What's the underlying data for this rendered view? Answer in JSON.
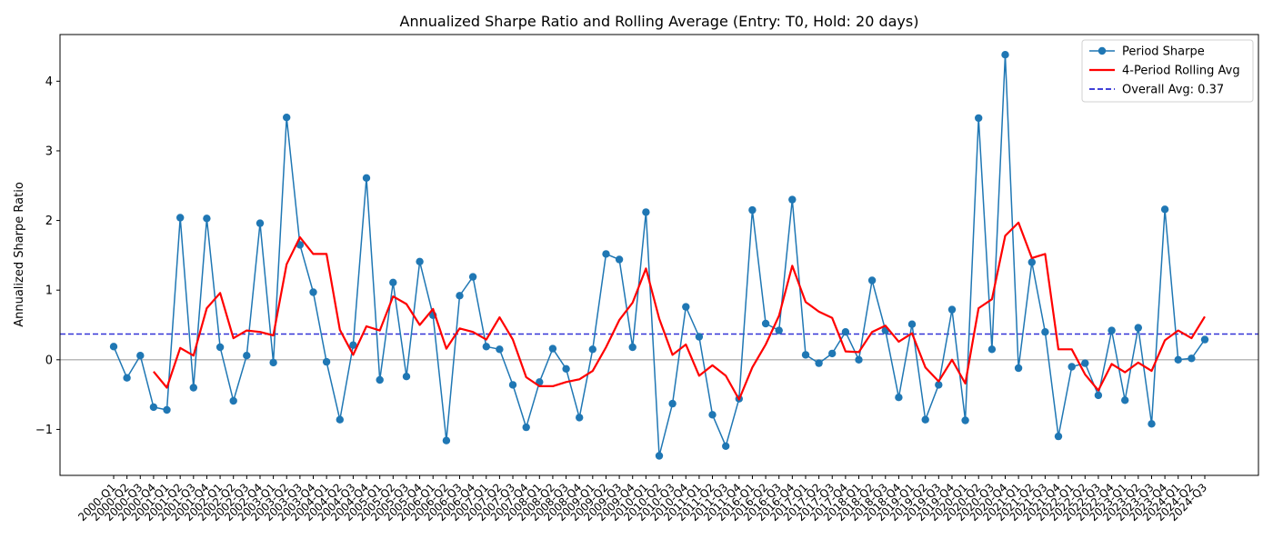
{
  "chart_data": {
    "type": "line",
    "title": "Annualized Sharpe Ratio and Rolling Average (Entry: T0, Hold: 20 days)",
    "xlabel": "",
    "ylabel": "Annualized Sharpe Ratio",
    "ylim": [
      -1.66,
      4.67
    ],
    "yticks": [
      -1,
      0,
      1,
      2,
      3,
      4
    ],
    "grid": false,
    "legend_position": "top-right",
    "categories": [
      "2000-Q1",
      "2000-Q2",
      "2000-Q3",
      "2000-Q4",
      "2001-Q1",
      "2001-Q2",
      "2001-Q3",
      "2001-Q4",
      "2002-Q1",
      "2002-Q2",
      "2002-Q3",
      "2002-Q4",
      "2003-Q1",
      "2003-Q2",
      "2003-Q3",
      "2003-Q4",
      "2004-Q1",
      "2004-Q2",
      "2004-Q3",
      "2004-Q4",
      "2005-Q1",
      "2005-Q2",
      "2005-Q3",
      "2005-Q4",
      "2006-Q1",
      "2006-Q2",
      "2006-Q3",
      "2006-Q4",
      "2007-Q1",
      "2007-Q2",
      "2007-Q3",
      "2007-Q4",
      "2008-Q1",
      "2008-Q2",
      "2008-Q3",
      "2008-Q4",
      "2009-Q1",
      "2009-Q2",
      "2009-Q3",
      "2009-Q4",
      "2010-Q1",
      "2010-Q2",
      "2010-Q3",
      "2010-Q4",
      "2011-Q1",
      "2011-Q2",
      "2011-Q3",
      "2011-Q4",
      "2016-Q1",
      "2016-Q2",
      "2016-Q3",
      "2016-Q4",
      "2017-Q1",
      "2017-Q2",
      "2017-Q3",
      "2017-Q4",
      "2018-Q1",
      "2018-Q2",
      "2018-Q3",
      "2018-Q4",
      "2019-Q1",
      "2019-Q2",
      "2019-Q3",
      "2019-Q4",
      "2020-Q1",
      "2020-Q2",
      "2020-Q3",
      "2020-Q4",
      "2021-Q1",
      "2021-Q2",
      "2021-Q3",
      "2021-Q4",
      "2022-Q1",
      "2022-Q2",
      "2022-Q3",
      "2022-Q4",
      "2023-Q1",
      "2023-Q2",
      "2023-Q3",
      "2023-Q4",
      "2024-Q1",
      "2024-Q2",
      "2024-Q3"
    ],
    "series": [
      {
        "name": "Period Sharpe",
        "kind": "line-markers",
        "color": "#1f77b4",
        "values": [
          0.19,
          -0.26,
          0.06,
          -0.68,
          -0.72,
          2.04,
          -0.4,
          2.03,
          0.18,
          -0.59,
          0.06,
          1.96,
          -0.04,
          3.48,
          1.65,
          0.97,
          -0.03,
          -0.86,
          0.21,
          2.61,
          -0.29,
          1.11,
          -0.24,
          1.41,
          0.64,
          -1.16,
          0.92,
          1.19,
          0.19,
          0.15,
          -0.36,
          -0.97,
          -0.32,
          0.16,
          -0.13,
          -0.83,
          0.15,
          1.52,
          1.44,
          0.18,
          2.12,
          -1.38,
          -0.63,
          0.76,
          0.33,
          -0.79,
          -1.24,
          -0.56,
          2.15,
          0.52,
          0.42,
          2.3,
          0.07,
          -0.05,
          0.09,
          0.4,
          0.0,
          1.14,
          0.42,
          -0.54,
          0.51,
          -0.86,
          -0.36,
          0.72,
          -0.87,
          3.47,
          0.15,
          4.38,
          -0.12,
          1.4,
          0.4,
          -1.1,
          -0.1,
          -0.05,
          -0.51,
          0.42,
          -0.58,
          0.46,
          -0.92,
          2.16,
          0.0,
          0.02,
          0.29
        ]
      },
      {
        "name": "4-Period Rolling Avg",
        "kind": "line",
        "color": "#ff0000",
        "values": [
          null,
          null,
          null,
          -0.17,
          -0.4,
          0.17,
          0.06,
          0.74,
          0.96,
          0.31,
          0.42,
          0.4,
          0.35,
          1.37,
          1.76,
          1.52,
          1.52,
          0.43,
          0.07,
          0.48,
          0.42,
          0.91,
          0.8,
          0.5,
          0.73,
          0.16,
          0.45,
          0.4,
          0.29,
          0.61,
          0.29,
          -0.25,
          -0.38,
          -0.38,
          -0.32,
          -0.28,
          -0.16,
          0.18,
          0.57,
          0.82,
          1.31,
          0.59,
          0.07,
          0.22,
          -0.23,
          -0.08,
          -0.23,
          -0.57,
          -0.11,
          0.22,
          0.63,
          1.35,
          0.83,
          0.69,
          0.6,
          0.12,
          0.11,
          0.4,
          0.49,
          0.26,
          0.38,
          -0.11,
          -0.31,
          0.0,
          -0.34,
          0.74,
          0.87,
          1.78,
          1.97,
          1.46,
          1.52,
          0.15,
          0.15,
          -0.21,
          -0.44,
          -0.06,
          -0.18,
          -0.04,
          -0.16,
          0.28,
          0.42,
          0.31,
          0.62
        ]
      }
    ],
    "reference_lines": [
      {
        "name": "Overall Avg: 0.37",
        "value": 0.37,
        "color": "#0000cc",
        "style": "dashed"
      },
      {
        "name": "",
        "value": 0,
        "color": "#999999",
        "style": "solid"
      }
    ]
  }
}
